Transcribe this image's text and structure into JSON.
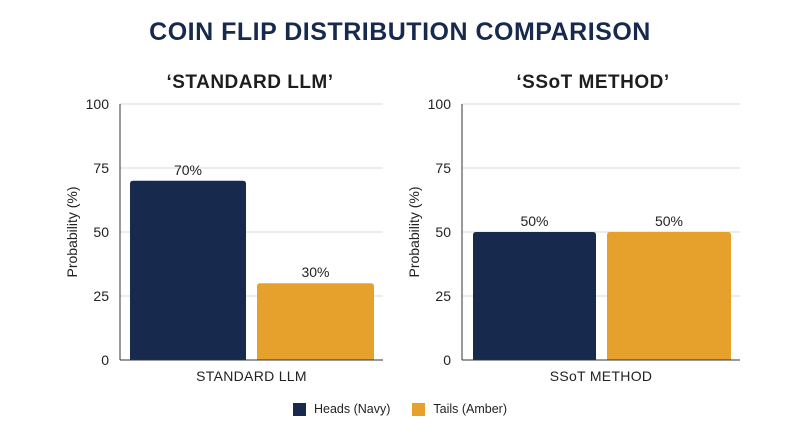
{
  "title": "COIN FLIP DISTRIBUTION COMPARISON",
  "colors": {
    "heads": "#172a4d",
    "tails": "#e5a12b",
    "grid": "#d9d9d9",
    "axis": "#333333"
  },
  "legend": [
    {
      "label": "Heads (Navy)",
      "color": "#172a4d"
    },
    {
      "label": "Tails (Amber)",
      "color": "#e5a12b"
    }
  ],
  "chart_data": [
    {
      "type": "bar",
      "title": "‘STANDARD LLM’",
      "categories": [
        "STANDARD LLM"
      ],
      "ylabel": "Probability (%)",
      "xlabel": "",
      "ylim": [
        0,
        100
      ],
      "yticks": [
        0,
        25,
        50,
        75,
        100
      ],
      "grid": true,
      "series": [
        {
          "name": "Heads (Navy)",
          "values": [
            70
          ],
          "labels": [
            "70%"
          ]
        },
        {
          "name": "Tails (Amber)",
          "values": [
            30
          ],
          "labels": [
            "30%"
          ]
        }
      ]
    },
    {
      "type": "bar",
      "title": "‘SSoT METHOD’",
      "categories": [
        "SSoT METHOD"
      ],
      "ylabel": "Probability (%)",
      "xlabel": "",
      "ylim": [
        0,
        100
      ],
      "yticks": [
        0,
        25,
        50,
        75,
        100
      ],
      "grid": true,
      "series": [
        {
          "name": "Heads (Navy)",
          "values": [
            50
          ],
          "labels": [
            "50%"
          ]
        },
        {
          "name": "Tails (Amber)",
          "values": [
            50
          ],
          "labels": [
            "50%"
          ]
        }
      ]
    }
  ]
}
